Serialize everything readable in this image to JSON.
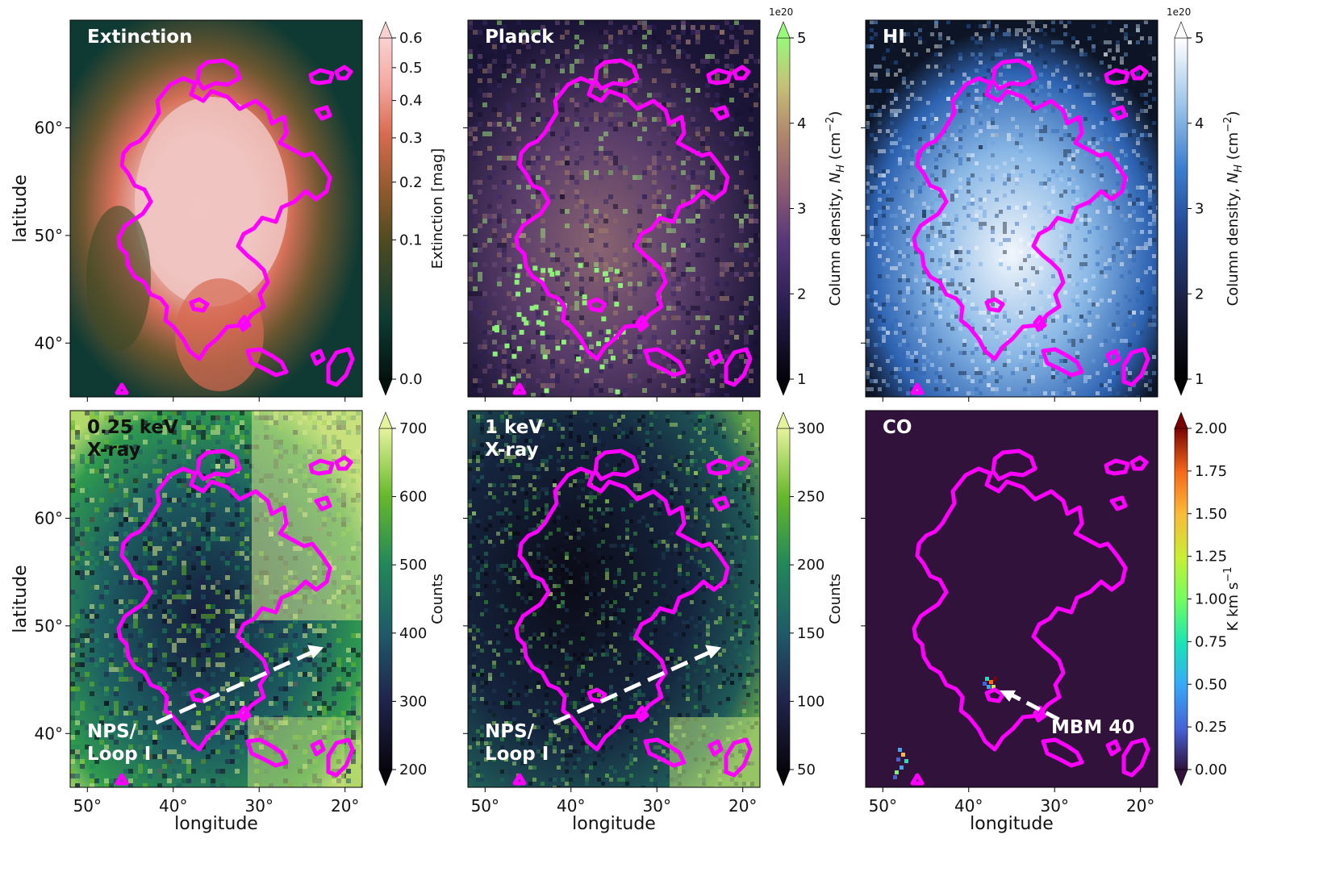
{
  "figure": {
    "longitude_label": "longitude",
    "latitude_label": "latitude",
    "lon_ticks": [
      "50°",
      "40°",
      "30°",
      "20°"
    ],
    "lat_ticks": [
      "60°",
      "50°",
      "40°"
    ]
  },
  "chart_data": [
    {
      "type": "heatmap",
      "title": "Extinction",
      "xlabel": "",
      "ylabel": "latitude",
      "xlim": [
        52,
        18
      ],
      "ylim": [
        35,
        70
      ],
      "colormap": "dark teal → brown → salmon → pink",
      "colorbar": {
        "label": "Extinction [mag]",
        "scale": "sqrt",
        "range": [
          0.0,
          0.6
        ],
        "ticks": [
          "0.0",
          "0.1",
          "0.2",
          "0.3",
          "0.4",
          "0.5",
          "0.6"
        ],
        "exponent": "",
        "extend": "both"
      },
      "annotations": []
    },
    {
      "type": "heatmap",
      "title": "Planck",
      "xlabel": "",
      "ylabel": "",
      "xlim": [
        52,
        18
      ],
      "ylim": [
        35,
        70
      ],
      "colormap": "black → purple → tan → light green",
      "colorbar": {
        "label": "Column density, N_H (cm^-2)",
        "scale": "linear",
        "range": [
          1,
          5
        ],
        "ticks": [
          "1",
          "2",
          "3",
          "4",
          "5"
        ],
        "exponent": "1e20",
        "extend": "both"
      },
      "annotations": []
    },
    {
      "type": "heatmap",
      "title": "HI",
      "xlabel": "",
      "ylabel": "",
      "xlim": [
        52,
        18
      ],
      "ylim": [
        35,
        70
      ],
      "colormap": "black → blue → white",
      "colorbar": {
        "label": "Column density, N_H (cm^-2)",
        "scale": "linear",
        "range": [
          1,
          5
        ],
        "ticks": [
          "1",
          "2",
          "3",
          "4",
          "5"
        ],
        "exponent": "1e20",
        "extend": "both"
      },
      "annotations": []
    },
    {
      "type": "heatmap",
      "title": "0.25 keV X-ray",
      "xlabel": "longitude",
      "ylabel": "latitude",
      "xlim": [
        52,
        18
      ],
      "ylim": [
        35,
        70
      ],
      "colormap": "black → dark blue → green → yellow",
      "colorbar": {
        "label": "Counts",
        "scale": "linear",
        "range": [
          200,
          700
        ],
        "ticks": [
          "200",
          "300",
          "400",
          "500",
          "600",
          "700"
        ],
        "exponent": "",
        "extend": "both"
      },
      "annotations": [
        {
          "text": "NPS/ Loop I"
        }
      ]
    },
    {
      "type": "heatmap",
      "title": "1 keV X-ray",
      "xlabel": "longitude",
      "ylabel": "",
      "xlim": [
        52,
        18
      ],
      "ylim": [
        35,
        70
      ],
      "colormap": "black → dark blue → green → yellow",
      "colorbar": {
        "label": "Counts",
        "scale": "linear",
        "range": [
          50,
          300
        ],
        "ticks": [
          "50",
          "100",
          "150",
          "200",
          "250",
          "300"
        ],
        "exponent": "",
        "extend": "both"
      },
      "annotations": [
        {
          "text": "NPS/ Loop I"
        }
      ]
    },
    {
      "type": "heatmap",
      "title": "CO",
      "xlabel": "longitude",
      "ylabel": "",
      "xlim": [
        52,
        18
      ],
      "ylim": [
        35,
        70
      ],
      "colormap": "turbo",
      "colorbar": {
        "label": "K km s^-1",
        "scale": "linear",
        "range": [
          0.0,
          2.0
        ],
        "ticks": [
          "0.00",
          "0.25",
          "0.50",
          "0.75",
          "1.00",
          "1.25",
          "1.50",
          "1.75",
          "2.00"
        ],
        "exponent": "",
        "extend": "both"
      },
      "annotations": [
        {
          "text": "MBM 40"
        }
      ]
    }
  ],
  "contour": {
    "color": "#ff00ff"
  },
  "ui_colors": {
    "contour": "#ff00ff",
    "annotation": "#ffffff",
    "dark_title": "#111111"
  }
}
